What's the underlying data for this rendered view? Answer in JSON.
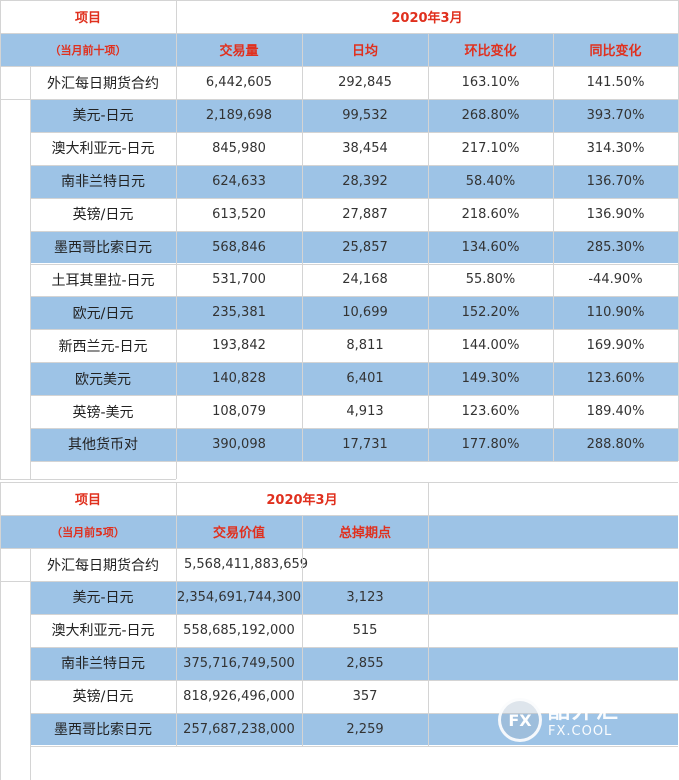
{
  "table1": {
    "header_item": "项目",
    "header_month": "2020年3月",
    "subheader_label": "（当月前十项）",
    "columns": [
      "交易量",
      "日均",
      "环比变化",
      "同比变化"
    ],
    "total": {
      "name": "外汇每日期货合约",
      "values": [
        "6,442,605",
        "292,845",
        "163.10%",
        "141.50%"
      ]
    },
    "rows": [
      {
        "name": "美元-日元",
        "values": [
          "2,189,698",
          "99,532",
          "268.80%",
          "393.70%"
        ]
      },
      {
        "name": "澳大利亚元-日元",
        "values": [
          "845,980",
          "38,454",
          "217.10%",
          "314.30%"
        ]
      },
      {
        "name": "南非兰特日元",
        "values": [
          "624,633",
          "28,392",
          "58.40%",
          "136.70%"
        ]
      },
      {
        "name": "英镑/日元",
        "values": [
          "613,520",
          "27,887",
          "218.60%",
          "136.90%"
        ]
      },
      {
        "name": "墨西哥比索日元",
        "values": [
          "568,846",
          "25,857",
          "134.60%",
          "285.30%"
        ]
      },
      {
        "name": "土耳其里拉-日元",
        "values": [
          "531,700",
          "24,168",
          "55.80%",
          "-44.90%"
        ]
      },
      {
        "name": "欧元/日元",
        "values": [
          "235,381",
          "10,699",
          "152.20%",
          "110.90%"
        ]
      },
      {
        "name": "新西兰元-日元",
        "values": [
          "193,842",
          "8,811",
          "144.00%",
          "169.90%"
        ]
      },
      {
        "name": "欧元美元",
        "values": [
          "140,828",
          "6,401",
          "149.30%",
          "123.60%"
        ]
      },
      {
        "name": "英镑-美元",
        "values": [
          "108,079",
          "4,913",
          "123.60%",
          "189.40%"
        ]
      },
      {
        "name": "其他货币对",
        "values": [
          "390,098",
          "17,731",
          "177.80%",
          "288.80%"
        ]
      }
    ]
  },
  "table2": {
    "header_item": "项目",
    "header_month": "2020年3月",
    "subheader_label": "（当月前5项）",
    "columns": [
      "交易价值",
      "总掉期点"
    ],
    "total": {
      "name": "外汇每日期货合约",
      "values": [
        "5,568,411,883,659",
        ""
      ]
    },
    "rows": [
      {
        "name": "美元-日元",
        "values": [
          "2,354,691,744,300",
          "3,123"
        ]
      },
      {
        "name": "澳大利亚元-日元",
        "values": [
          "558,685,192,000",
          "515"
        ]
      },
      {
        "name": "南非兰特日元",
        "values": [
          "375,716,749,500",
          "2,855"
        ]
      },
      {
        "name": "英镑/日元",
        "values": [
          "818,926,496,000",
          "357"
        ]
      },
      {
        "name": "墨西哥比索日元",
        "values": [
          "257,687,238,000",
          "2,259"
        ]
      }
    ]
  },
  "watermark": {
    "cn": "酷外汇",
    "en": "FX.COOL",
    "logo": "FX"
  },
  "colors": {
    "band": "#9dc3e6",
    "header_text": "#e0301e",
    "grid": "#d4d4d4"
  }
}
